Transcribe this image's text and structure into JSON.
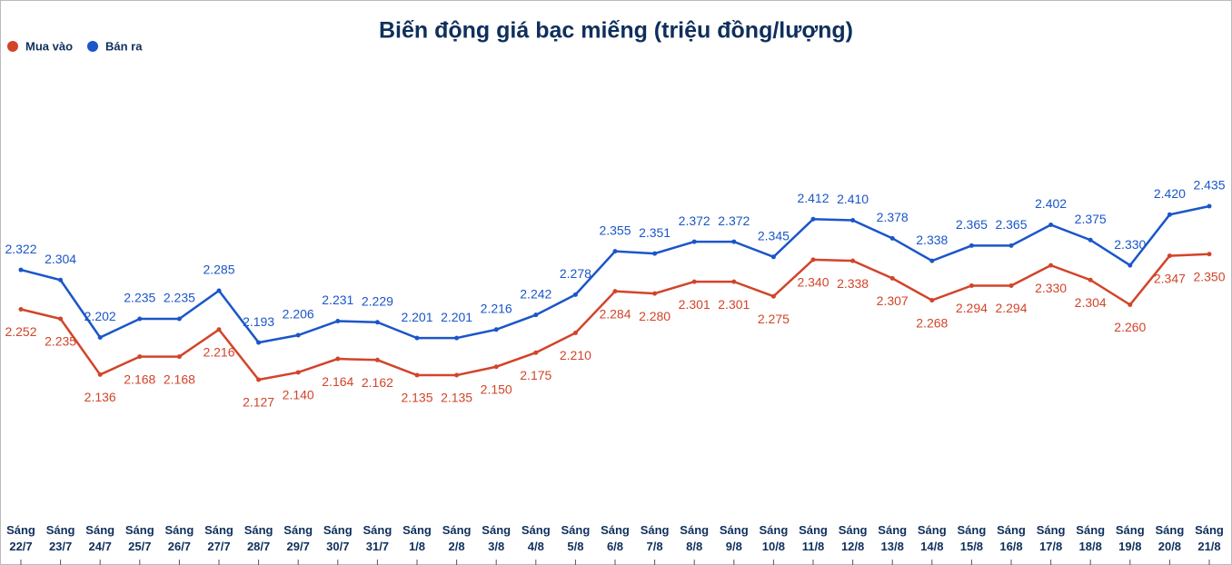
{
  "chart_data": {
    "type": "line",
    "title": "Biến động giá bạc miếng (triệu đồng/lượng)",
    "categories": [
      "Sáng 22/7",
      "Sáng 23/7",
      "Sáng 24/7",
      "Sáng 25/7",
      "Sáng 26/7",
      "Sáng 27/7",
      "Sáng 28/7",
      "Sáng 29/7",
      "Sáng 30/7",
      "Sáng 31/7",
      "Sáng 1/8",
      "Sáng 2/8",
      "Sáng 3/8",
      "Sáng 4/8",
      "Sáng 5/8",
      "Sáng 6/8",
      "Sáng 7/8",
      "Sáng 8/8",
      "Sáng 9/8",
      "Sáng 10/8",
      "Sáng 11/8",
      "Sáng 12/8",
      "Sáng 13/8",
      "Sáng 14/8",
      "Sáng 15/8",
      "Sáng 16/8",
      "Sáng 17/8",
      "Sáng 18/8",
      "Sáng 19/8",
      "Sáng 20/8",
      "Sáng 21/8"
    ],
    "series": [
      {
        "name": "Mua vào",
        "color": "#d2442a",
        "values": [
          2.252,
          2.235,
          2.136,
          2.168,
          2.168,
          2.216,
          2.127,
          2.14,
          2.164,
          2.162,
          2.135,
          2.135,
          2.15,
          2.175,
          2.21,
          2.284,
          2.28,
          2.301,
          2.301,
          2.275,
          2.34,
          2.338,
          2.307,
          2.268,
          2.294,
          2.294,
          2.33,
          2.304,
          2.26,
          2.347,
          2.35
        ],
        "value_labels": [
          "2.252",
          "2.235",
          "2.136",
          "2.168",
          "2.168",
          "2.216",
          "2.127",
          "2.140",
          "2.164",
          "2.162",
          "2.135",
          "2.135",
          "2.150",
          "2.175",
          "2.210",
          "2.284",
          "2.280",
          "2.301",
          "2.301",
          "2.275",
          "2.340",
          "2.338",
          "2.307",
          "2.268",
          "2.294",
          "2.294",
          "2.330",
          "2.304",
          "2.260",
          "2.347",
          "2.350"
        ]
      },
      {
        "name": "Bán ra",
        "color": "#1a56c9",
        "values": [
          2.322,
          2.304,
          2.202,
          2.235,
          2.235,
          2.285,
          2.193,
          2.206,
          2.231,
          2.229,
          2.201,
          2.201,
          2.216,
          2.242,
          2.278,
          2.355,
          2.351,
          2.372,
          2.372,
          2.345,
          2.412,
          2.41,
          2.378,
          2.338,
          2.365,
          2.365,
          2.402,
          2.375,
          2.33,
          2.42,
          2.435
        ],
        "value_labels": [
          "2.322",
          "2.304",
          "2.202",
          "2.235",
          "2.235",
          "2.285",
          "2.193",
          "2.206",
          "2.231",
          "2.229",
          "2.201",
          "2.201",
          "2.216",
          "2.242",
          "2.278",
          "2.355",
          "2.351",
          "2.372",
          "2.372",
          "2.345",
          "2.412",
          "2.410",
          "2.378",
          "2.338",
          "2.365",
          "2.365",
          "2.402",
          "2.375",
          "2.330",
          "2.420",
          "2.435"
        ]
      }
    ]
  }
}
